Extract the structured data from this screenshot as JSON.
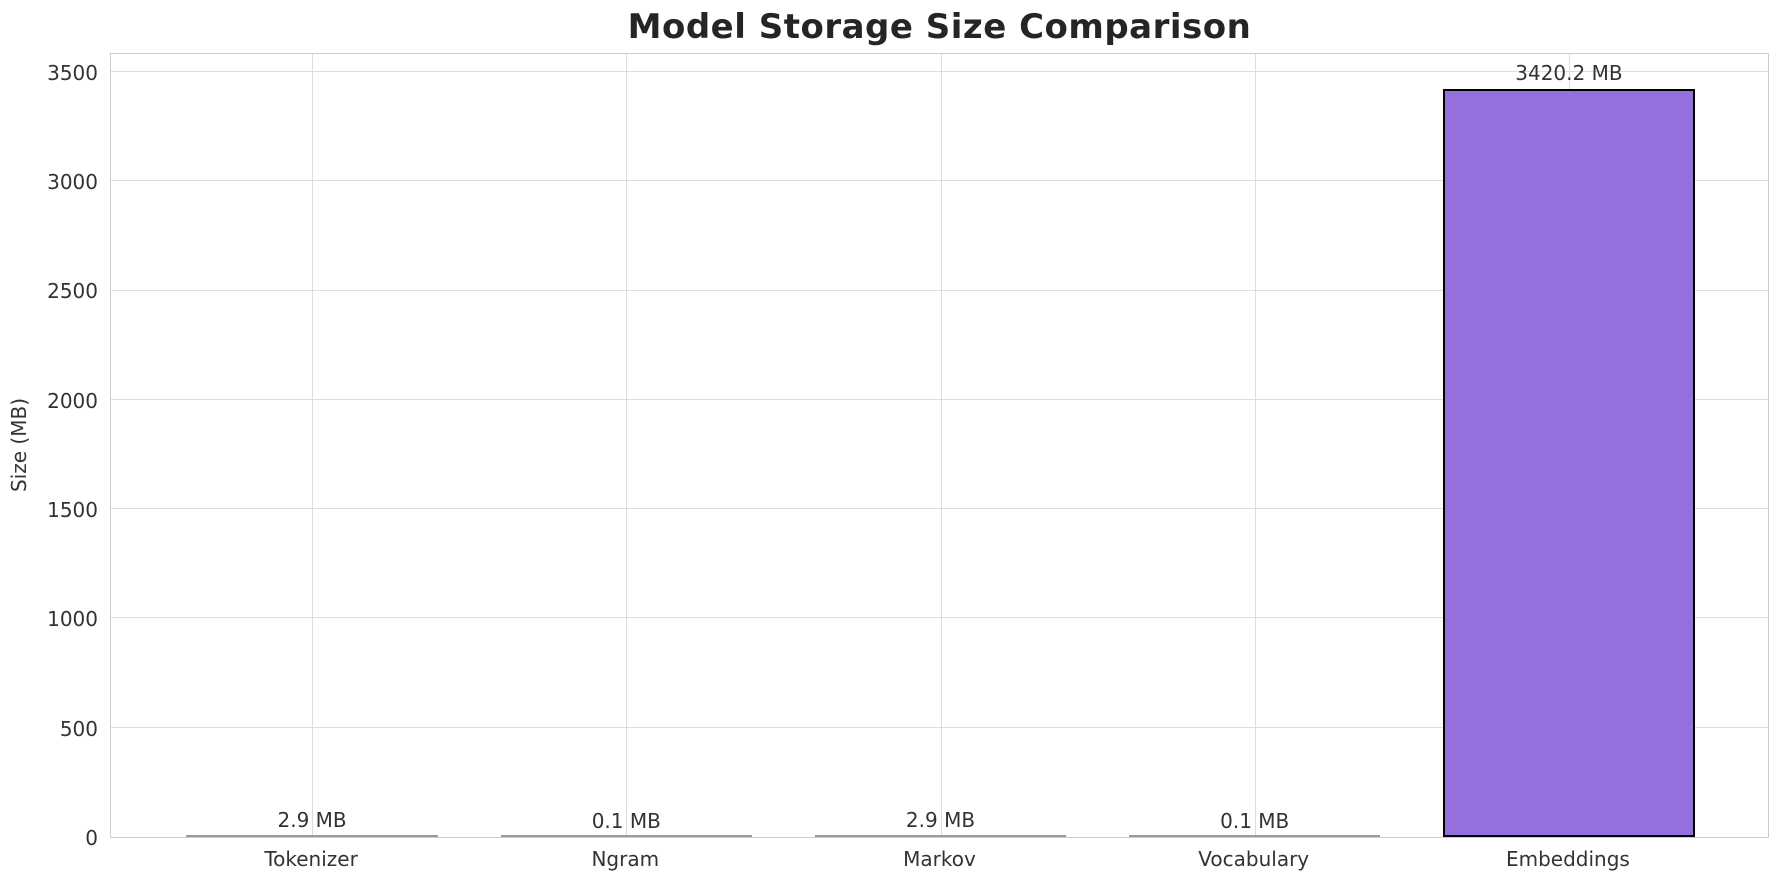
{
  "chart_data": {
    "type": "bar",
    "title": "Model Storage Size Comparison",
    "xlabel": "",
    "ylabel": "Size (MB)",
    "categories": [
      "Tokenizer",
      "Ngram",
      "Markov",
      "Vocabulary",
      "Embeddings"
    ],
    "values": [
      2.9,
      0.1,
      2.9,
      0.1,
      3420.2
    ],
    "value_labels": [
      "2.9 MB",
      "0.1 MB",
      "2.9 MB",
      "0.1 MB",
      "3420.2 MB"
    ],
    "yticks": [
      0,
      500,
      1000,
      1500,
      2000,
      2500,
      3000,
      3500
    ],
    "ylim": [
      0,
      3591
    ],
    "grid": true,
    "legend": "none",
    "colors": {
      "bar_fill": "#9370DB",
      "bar_edge": "#000000",
      "tiny_bar": "#9a9a9a",
      "grid": "#dddddd",
      "spine": "#cccccc",
      "title_text": "#252525",
      "tick_text": "#333333"
    }
  }
}
